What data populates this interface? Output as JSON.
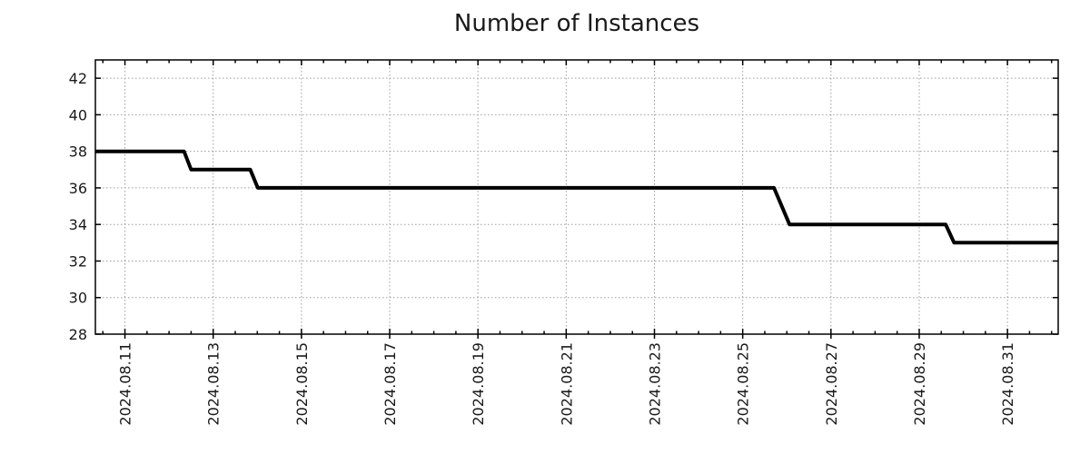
{
  "chart_data": {
    "type": "line",
    "style": "step-like time series, black heavy line, dotted gray grid, boxed plot with mirrored inward ticks",
    "title": "Number of Instances",
    "title_color": "#1a1a1a",
    "line_color": "#000000",
    "grid_color": "#9e9e9e",
    "axis_color": "#000000",
    "background_color": "#ffffff",
    "xlabel": "",
    "ylabel": "",
    "legend": "none",
    "x_axis": {
      "tick_labels": [
        "2024.08.11",
        "2024.08.13",
        "2024.08.15",
        "2024.08.17",
        "2024.08.19",
        "2024.08.21",
        "2024.08.23",
        "2024.08.25",
        "2024.08.27",
        "2024.08.29",
        "2024.08.31"
      ],
      "tick_offsets_days": [
        0,
        2,
        4,
        6,
        8,
        10,
        12,
        14,
        16,
        18,
        20
      ],
      "minor_tick_step_days": 0.5,
      "range_days": [
        -0.67,
        21.15
      ],
      "label_rotation_deg": -90
    },
    "y_axis": {
      "ticks": [
        28,
        30,
        32,
        34,
        36,
        38,
        40,
        42
      ],
      "range": [
        28,
        43
      ]
    },
    "series": [
      {
        "name": "instances",
        "points_day_value": [
          [
            -0.67,
            38
          ],
          [
            1.34,
            38
          ],
          [
            1.5,
            37
          ],
          [
            2.84,
            37
          ],
          [
            3.01,
            36
          ],
          [
            14.71,
            36
          ],
          [
            15.06,
            34
          ],
          [
            18.6,
            34
          ],
          [
            18.79,
            33
          ],
          [
            21.15,
            33
          ]
        ]
      }
    ],
    "plateaus": [
      {
        "value": 38,
        "from": "2024.08.10",
        "to": "2024.08.12"
      },
      {
        "value": 37,
        "from": "2024.08.12",
        "to": "2024.08.14"
      },
      {
        "value": 36,
        "from": "2024.08.14",
        "to": "2024.08.26"
      },
      {
        "value": 34,
        "from": "2024.08.26",
        "to": "2024.08.30"
      },
      {
        "value": 33,
        "from": "2024.08.30",
        "to": "2024.09.01"
      }
    ]
  }
}
